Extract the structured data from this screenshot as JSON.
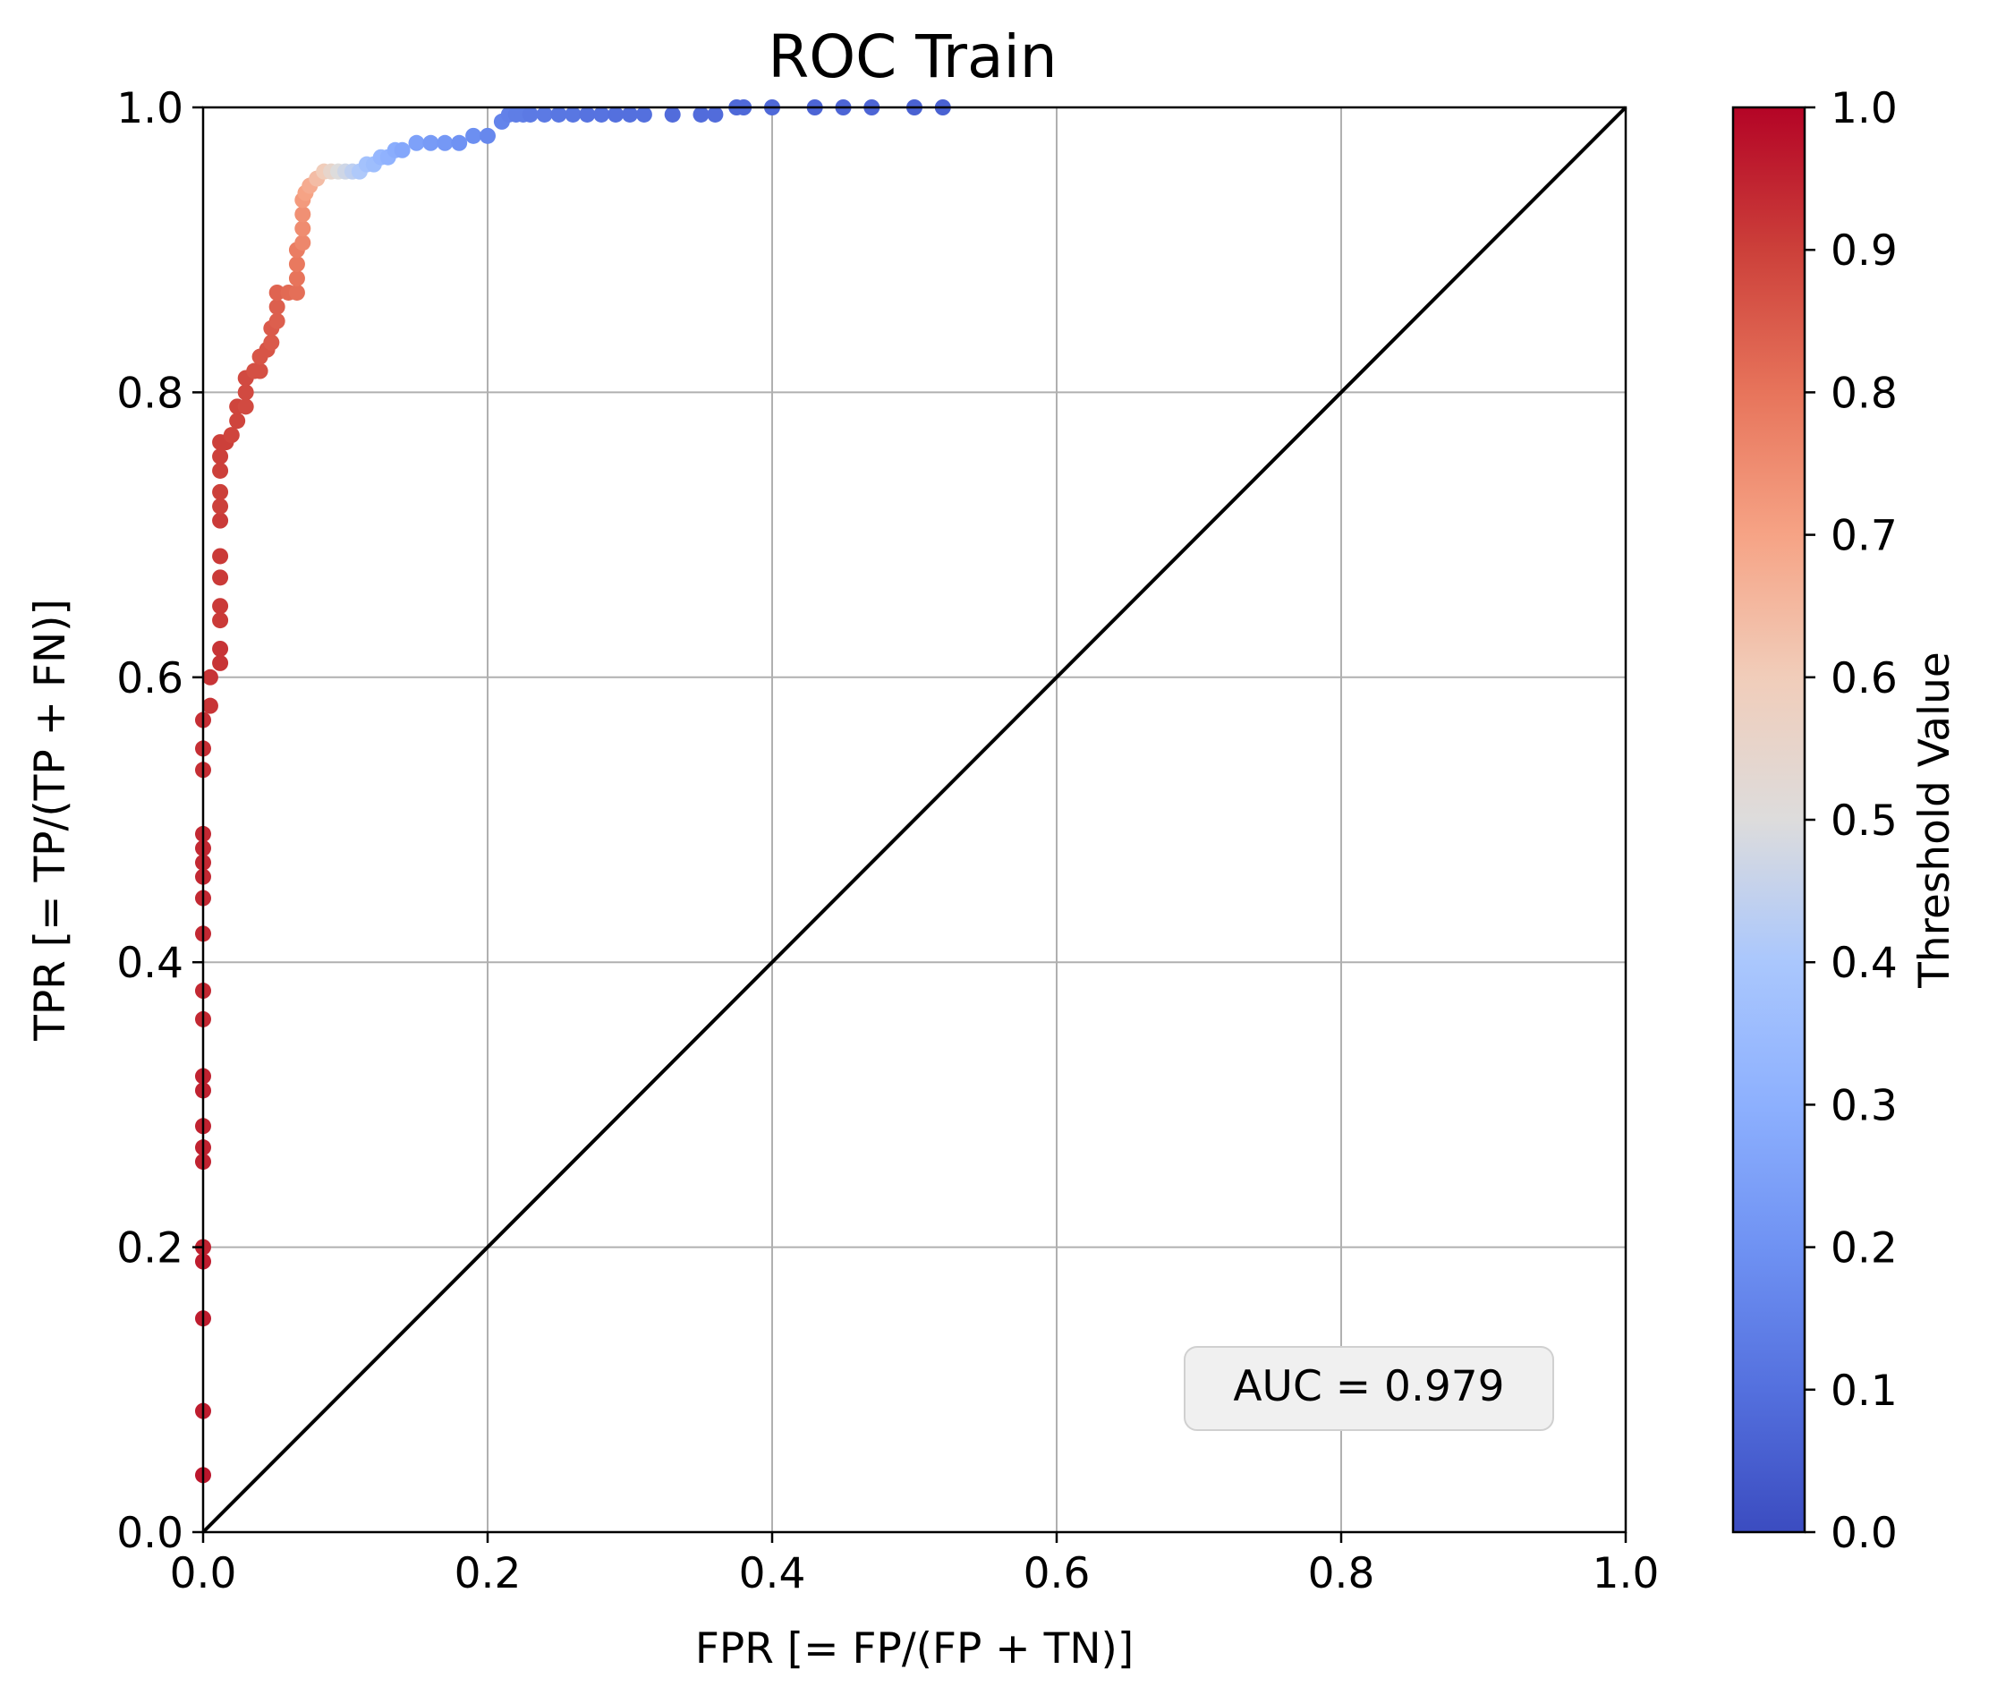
{
  "chart_data": {
    "type": "scatter",
    "title": "ROC Train",
    "xlabel": "FPR [= FP/(FP + TN)]",
    "ylabel": "TPR [= TP/(TP + FN)]",
    "xlim": [
      0.0,
      1.0
    ],
    "ylim": [
      0.0,
      1.0
    ],
    "grid": true,
    "xticks": [
      "0.0",
      "0.2",
      "0.4",
      "0.6",
      "0.8",
      "1.0"
    ],
    "yticks": [
      "0.0",
      "0.2",
      "0.4",
      "0.6",
      "0.8",
      "1.0"
    ],
    "colorbar": {
      "label": "Threshold Value",
      "range": [
        0.0,
        1.0
      ],
      "colormap": "coolwarm",
      "ticks": [
        "0.0",
        "0.1",
        "0.2",
        "0.3",
        "0.4",
        "0.5",
        "0.6",
        "0.7",
        "0.8",
        "0.9",
        "1.0"
      ]
    },
    "annotation": "AUC = 0.979",
    "reference_line": {
      "from": [
        0.0,
        0.0
      ],
      "to": [
        1.0,
        1.0
      ],
      "color": "#000000"
    },
    "points": [
      [
        0.0,
        0.04,
        0.97
      ],
      [
        0.0,
        0.085,
        0.96
      ],
      [
        0.0,
        0.15,
        0.96
      ],
      [
        0.0,
        0.19,
        0.96
      ],
      [
        0.0,
        0.2,
        0.95
      ],
      [
        0.0,
        0.26,
        0.95
      ],
      [
        0.0,
        0.27,
        0.95
      ],
      [
        0.0,
        0.285,
        0.95
      ],
      [
        0.0,
        0.31,
        0.95
      ],
      [
        0.0,
        0.32,
        0.95
      ],
      [
        0.0,
        0.36,
        0.94
      ],
      [
        0.0,
        0.38,
        0.94
      ],
      [
        0.0,
        0.42,
        0.94
      ],
      [
        0.0,
        0.445,
        0.94
      ],
      [
        0.0,
        0.46,
        0.94
      ],
      [
        0.0,
        0.47,
        0.94
      ],
      [
        0.0,
        0.48,
        0.94
      ],
      [
        0.0,
        0.49,
        0.94
      ],
      [
        0.0,
        0.535,
        0.93
      ],
      [
        0.0,
        0.55,
        0.93
      ],
      [
        0.0,
        0.57,
        0.93
      ],
      [
        0.005,
        0.58,
        0.92
      ],
      [
        0.005,
        0.6,
        0.92
      ],
      [
        0.012,
        0.61,
        0.92
      ],
      [
        0.012,
        0.62,
        0.92
      ],
      [
        0.012,
        0.64,
        0.91
      ],
      [
        0.012,
        0.65,
        0.91
      ],
      [
        0.012,
        0.67,
        0.91
      ],
      [
        0.012,
        0.685,
        0.91
      ],
      [
        0.012,
        0.71,
        0.91
      ],
      [
        0.012,
        0.72,
        0.9
      ],
      [
        0.012,
        0.73,
        0.9
      ],
      [
        0.012,
        0.745,
        0.9
      ],
      [
        0.012,
        0.755,
        0.9
      ],
      [
        0.012,
        0.765,
        0.9
      ],
      [
        0.016,
        0.765,
        0.9
      ],
      [
        0.02,
        0.77,
        0.89
      ],
      [
        0.024,
        0.78,
        0.89
      ],
      [
        0.024,
        0.79,
        0.89
      ],
      [
        0.03,
        0.79,
        0.88
      ],
      [
        0.03,
        0.8,
        0.88
      ],
      [
        0.03,
        0.81,
        0.88
      ],
      [
        0.036,
        0.815,
        0.87
      ],
      [
        0.04,
        0.815,
        0.87
      ],
      [
        0.04,
        0.825,
        0.86
      ],
      [
        0.045,
        0.83,
        0.86
      ],
      [
        0.048,
        0.835,
        0.85
      ],
      [
        0.048,
        0.845,
        0.85
      ],
      [
        0.052,
        0.85,
        0.84
      ],
      [
        0.052,
        0.86,
        0.84
      ],
      [
        0.052,
        0.87,
        0.83
      ],
      [
        0.06,
        0.87,
        0.82
      ],
      [
        0.066,
        0.87,
        0.81
      ],
      [
        0.066,
        0.88,
        0.8
      ],
      [
        0.066,
        0.89,
        0.79
      ],
      [
        0.066,
        0.9,
        0.78
      ],
      [
        0.07,
        0.905,
        0.76
      ],
      [
        0.07,
        0.915,
        0.75
      ],
      [
        0.07,
        0.925,
        0.74
      ],
      [
        0.07,
        0.935,
        0.72
      ],
      [
        0.072,
        0.94,
        0.7
      ],
      [
        0.075,
        0.945,
        0.68
      ],
      [
        0.08,
        0.95,
        0.64
      ],
      [
        0.085,
        0.955,
        0.6
      ],
      [
        0.09,
        0.955,
        0.55
      ],
      [
        0.095,
        0.955,
        0.5
      ],
      [
        0.1,
        0.955,
        0.47
      ],
      [
        0.105,
        0.955,
        0.44
      ],
      [
        0.11,
        0.955,
        0.41
      ],
      [
        0.115,
        0.96,
        0.38
      ],
      [
        0.12,
        0.96,
        0.36
      ],
      [
        0.125,
        0.965,
        0.33
      ],
      [
        0.13,
        0.965,
        0.31
      ],
      [
        0.135,
        0.97,
        0.29
      ],
      [
        0.14,
        0.97,
        0.27
      ],
      [
        0.15,
        0.975,
        0.25
      ],
      [
        0.16,
        0.975,
        0.23
      ],
      [
        0.17,
        0.975,
        0.22
      ],
      [
        0.18,
        0.975,
        0.2
      ],
      [
        0.19,
        0.98,
        0.19
      ],
      [
        0.2,
        0.98,
        0.17
      ],
      [
        0.21,
        0.99,
        0.16
      ],
      [
        0.215,
        0.995,
        0.15
      ],
      [
        0.22,
        0.995,
        0.14
      ],
      [
        0.225,
        0.995,
        0.14
      ],
      [
        0.23,
        0.995,
        0.13
      ],
      [
        0.24,
        0.995,
        0.13
      ],
      [
        0.25,
        0.995,
        0.12
      ],
      [
        0.26,
        0.995,
        0.12
      ],
      [
        0.27,
        0.995,
        0.11
      ],
      [
        0.28,
        0.995,
        0.11
      ],
      [
        0.29,
        0.995,
        0.1
      ],
      [
        0.3,
        0.995,
        0.1
      ],
      [
        0.31,
        0.995,
        0.1
      ],
      [
        0.33,
        0.995,
        0.09
      ],
      [
        0.35,
        0.995,
        0.09
      ],
      [
        0.36,
        0.995,
        0.09
      ],
      [
        0.375,
        1.0,
        0.08
      ],
      [
        0.38,
        1.0,
        0.08
      ],
      [
        0.4,
        1.0,
        0.08
      ],
      [
        0.43,
        1.0,
        0.07
      ],
      [
        0.45,
        1.0,
        0.07
      ],
      [
        0.47,
        1.0,
        0.07
      ],
      [
        0.5,
        1.0,
        0.06
      ],
      [
        0.52,
        1.0,
        0.06
      ]
    ]
  }
}
